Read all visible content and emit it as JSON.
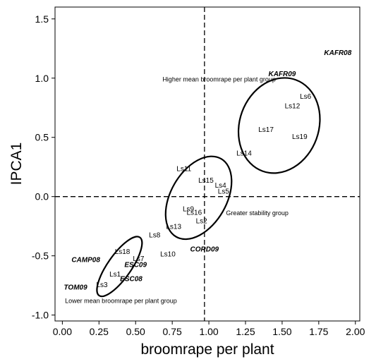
{
  "chart_data": {
    "type": "scatter",
    "title": "",
    "xlabel": "broomrape per plant",
    "ylabel": "IPCA1",
    "xlim": [
      -0.05,
      2.03
    ],
    "ylim": [
      -1.05,
      1.6
    ],
    "x_ticks": [
      "0.00",
      "0.25",
      "0.50",
      "0.75",
      "1.00",
      "1.25",
      "1.50",
      "1.75",
      "2.00"
    ],
    "y_ticks": [
      "-1.0",
      "-0.5",
      "0.0",
      "0.5",
      "1.0",
      "1.5"
    ],
    "x_tick_values": [
      0,
      0.25,
      0.5,
      0.75,
      1.0,
      1.25,
      1.5,
      1.75,
      2.0
    ],
    "y_tick_values": [
      -1.0,
      -0.5,
      0.0,
      0.5,
      1.0,
      1.5
    ],
    "reference_lines": {
      "vertical_x": 0.97,
      "horizontal_y": 0.0,
      "style": "dashed"
    },
    "genotypes": [
      {
        "label": "Ls1",
        "x": 0.36,
        "y": -0.65
      },
      {
        "label": "Ls2",
        "x": 0.95,
        "y": -0.2
      },
      {
        "label": "Ls3",
        "x": 0.27,
        "y": -0.74
      },
      {
        "label": "Ls4",
        "x": 1.08,
        "y": 0.1
      },
      {
        "label": "Ls5",
        "x": 1.1,
        "y": 0.05
      },
      {
        "label": "Ls6",
        "x": 1.66,
        "y": 0.85
      },
      {
        "label": "Ls7",
        "x": 0.52,
        "y": -0.52
      },
      {
        "label": "Ls8",
        "x": 0.63,
        "y": -0.32
      },
      {
        "label": "Ls9",
        "x": 0.86,
        "y": -0.1
      },
      {
        "label": "Ls10",
        "x": 0.72,
        "y": -0.48
      },
      {
        "label": "Ls11",
        "x": 0.83,
        "y": 0.24
      },
      {
        "label": "Ls12",
        "x": 1.57,
        "y": 0.77
      },
      {
        "label": "Ls13",
        "x": 0.76,
        "y": -0.25
      },
      {
        "label": "Ls14",
        "x": 1.24,
        "y": 0.37
      },
      {
        "label": "Ls15",
        "x": 0.98,
        "y": 0.14
      },
      {
        "label": "Ls16",
        "x": 0.9,
        "y": -0.13
      },
      {
        "label": "Ls17",
        "x": 1.39,
        "y": 0.57
      },
      {
        "label": "Ls18",
        "x": 0.41,
        "y": -0.46
      },
      {
        "label": "Ls19",
        "x": 1.62,
        "y": 0.51
      }
    ],
    "environments": [
      {
        "label": "KAFR08",
        "x": 1.88,
        "y": 1.22
      },
      {
        "label": "KAFR09",
        "x": 1.5,
        "y": 1.04
      },
      {
        "label": "CORD09",
        "x": 0.97,
        "y": -0.44
      },
      {
        "label": "CAMP08",
        "x": 0.16,
        "y": -0.53
      },
      {
        "label": "ESC09",
        "x": 0.5,
        "y": -0.57
      },
      {
        "label": "ESC08",
        "x": 0.47,
        "y": -0.69
      },
      {
        "label": "TOM09",
        "x": 0.09,
        "y": -0.76
      }
    ],
    "groups": [
      {
        "label": "Higher mean broomrape per plant group",
        "x": 1.07,
        "y": 0.99,
        "ellipse": {
          "cx": 1.48,
          "cy": 0.6,
          "rx": 0.27,
          "ry": 0.41,
          "rotate": 20
        }
      },
      {
        "label": "Greater stability group",
        "x": 1.33,
        "y": -0.14,
        "ellipse": {
          "cx": 0.93,
          "cy": -0.01,
          "rx": 0.19,
          "ry": 0.38,
          "rotate": 30
        }
      },
      {
        "label": "Lower mean broomrape per plant group",
        "x": 0.4,
        "y": -0.88,
        "ellipse": {
          "cx": 0.39,
          "cy": -0.59,
          "rx": 0.08,
          "ry": 0.3,
          "rotate": 35
        }
      }
    ],
    "grid": false,
    "legend": "none"
  }
}
